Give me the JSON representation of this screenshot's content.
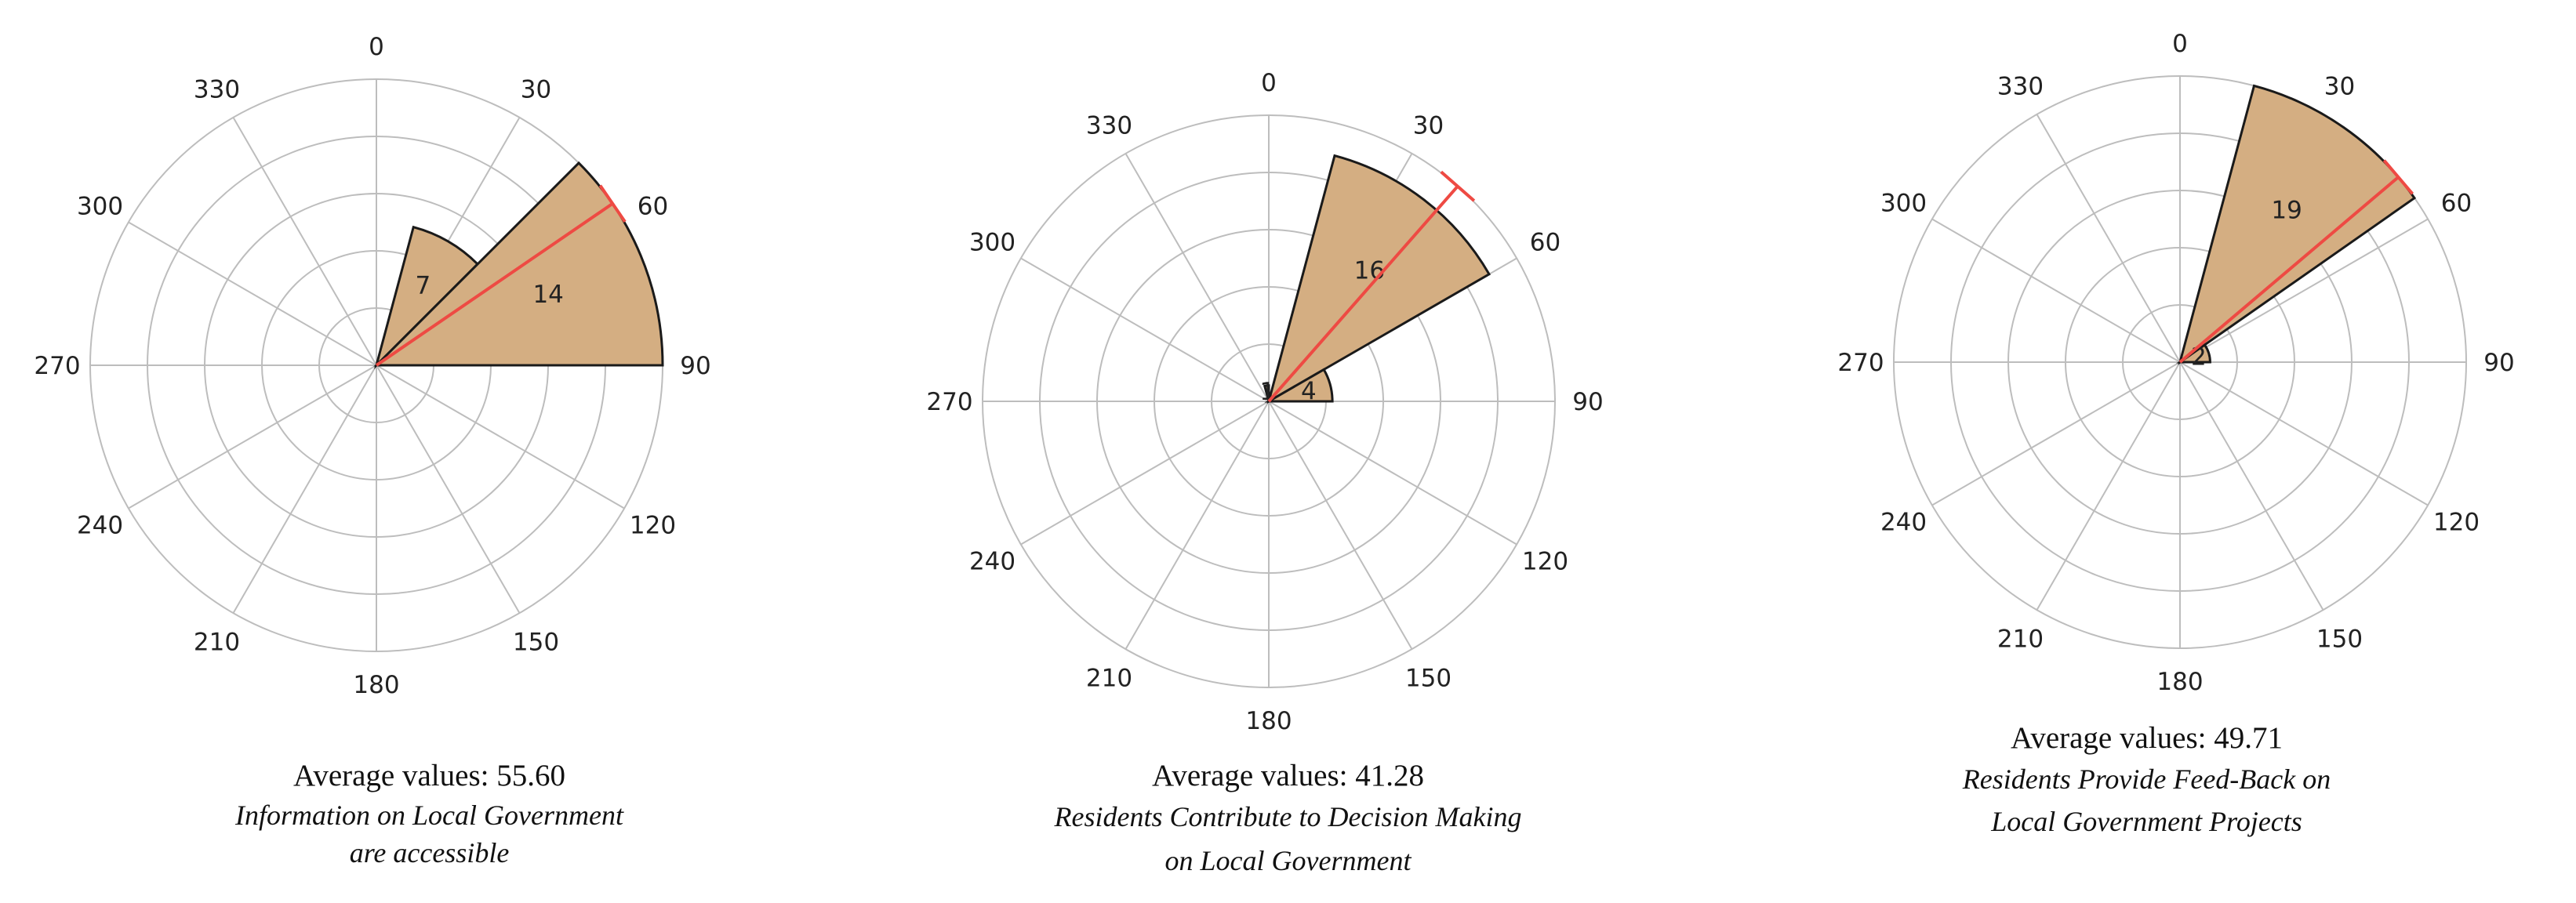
{
  "chart_data": [
    {
      "type": "polar-bar",
      "angle_ticks": [
        "0",
        "30",
        "60",
        "90",
        "120",
        "150",
        "180",
        "210",
        "240",
        "270",
        "300",
        "330"
      ],
      "bins": [
        {
          "start": 15,
          "end": 45,
          "value": 7
        },
        {
          "start": 45,
          "end": 90,
          "value": 14
        }
      ],
      "r_max": 14,
      "average_angle": 55.6,
      "average_label": "Average values: 55.60",
      "title_lines": [
        "Information on Local Government",
        "are accessible"
      ],
      "colors": {
        "fill": "#d4ae82",
        "stroke": "#1a1a1a",
        "mean_line": "#ee4a43",
        "grid": "#bdbdbd"
      }
    },
    {
      "type": "polar-bar",
      "angle_ticks": [
        "0",
        "30",
        "60",
        "90",
        "120",
        "150",
        "180",
        "210",
        "240",
        "270",
        "300",
        "330"
      ],
      "bins": [
        {
          "start": -15,
          "end": 0,
          "value": 1
        },
        {
          "start": 15,
          "end": 60,
          "value": 16
        },
        {
          "start": 60,
          "end": 90,
          "value": 4
        }
      ],
      "r_max": 18,
      "average_angle": 41.28,
      "average_label": "Average values: 41.28",
      "title_lines": [
        "Residents Contribute to Decision Making",
        "on Local  Government"
      ],
      "colors": {
        "fill": "#d4ae82",
        "stroke": "#1a1a1a",
        "mean_line": "#ee4a43",
        "grid": "#bdbdbd"
      }
    },
    {
      "type": "polar-bar",
      "angle_ticks": [
        "0",
        "30",
        "60",
        "90",
        "120",
        "150",
        "180",
        "210",
        "240",
        "270",
        "300",
        "330"
      ],
      "bins": [
        {
          "start": 15,
          "end": 55,
          "value": 19
        },
        {
          "start": 55,
          "end": 90,
          "value": 2
        }
      ],
      "r_max": 19,
      "average_angle": 49.71,
      "average_label": "Average values: 49.71",
      "title_lines": [
        "Residents Provide Feed-Back on",
        "Local Government Projects"
      ],
      "colors": {
        "fill": "#d4ae82",
        "stroke": "#1a1a1a",
        "mean_line": "#ee4a43",
        "grid": "#bdbdbd"
      }
    }
  ]
}
